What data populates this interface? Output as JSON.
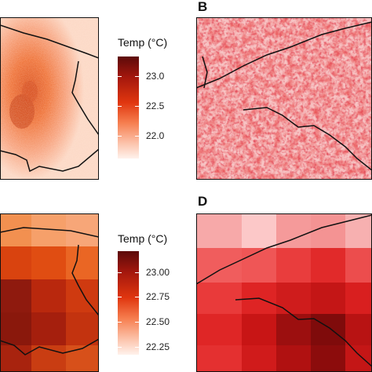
{
  "panels": [
    {
      "id": "A",
      "letter": "",
      "style": "fine-orange"
    },
    {
      "id": "B",
      "letter": "B",
      "style": "fine-red"
    },
    {
      "id": "C",
      "letter": "",
      "style": "coarse-orange"
    },
    {
      "id": "D",
      "letter": "D",
      "style": "coarse-red"
    }
  ],
  "legends": [
    {
      "title": "Temp (°C)",
      "ticks": [
        "23.0",
        "22.5",
        "22.0"
      ],
      "colors": [
        "#5c0a0a",
        "#a3170d",
        "#e0360f",
        "#f67e4f",
        "#fcc3ab",
        "#fff2ec"
      ]
    },
    {
      "title": "Temp (°C)",
      "ticks": [
        "23.00",
        "22.75",
        "22.50",
        "22.25"
      ],
      "colors": [
        "#5c0a0a",
        "#a3170d",
        "#e0360f",
        "#f67e4f",
        "#fcc3ab",
        "#fff2ec"
      ]
    }
  ],
  "colors": {
    "border_line": "#111111",
    "frame": "#111111"
  }
}
